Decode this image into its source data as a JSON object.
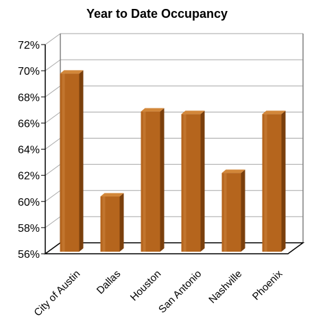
{
  "chart_data": {
    "type": "bar",
    "title": "Year to Date Occupancy",
    "xlabel": "",
    "ylabel": "",
    "categories": [
      "City of Austin",
      "Dallas",
      "Houston",
      "San Antonio",
      "Nashville",
      "Phoenix"
    ],
    "values": [
      70.2,
      60.8,
      67.3,
      67.1,
      62.6,
      67.1
    ],
    "ylim": [
      56,
      72
    ],
    "yticks": [
      "56%",
      "58%",
      "60%",
      "62%",
      "64%",
      "66%",
      "68%",
      "70%",
      "72%"
    ],
    "grid": true,
    "legend": "none",
    "style": "3d-column",
    "colors": {
      "bar_front": "#b5651d",
      "bar_side": "#7a3f0c",
      "bar_top": "#d2873a",
      "grid": "#a6a6a6"
    }
  }
}
